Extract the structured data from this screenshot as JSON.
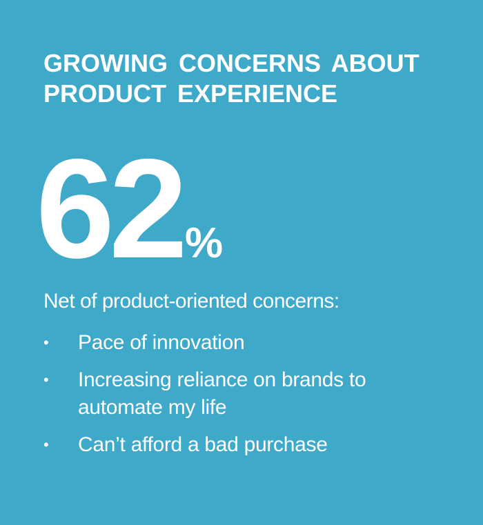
{
  "header": {
    "title": "GROWING CONCERNS ABOUT PRODUCT EXPERIENCE"
  },
  "stat": {
    "value": "62",
    "unit": "%"
  },
  "intro": "Net of product-oriented concerns:",
  "bullets": [
    "Pace of innovation",
    "Increasing reliance on brands to automate my life",
    "Can’t afford a bad purchase"
  ]
}
